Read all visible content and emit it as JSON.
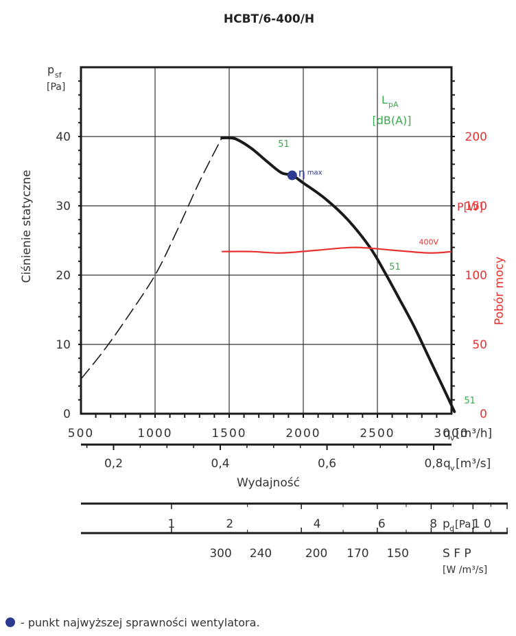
{
  "colors": {
    "curve": "#1a1a1a",
    "power": "#e8312f",
    "noise": "#3aaa4e",
    "eta": "#2b3990",
    "grid": "#333333"
  },
  "chart_data": {
    "type": "line",
    "title": "HCBT/6-400/H",
    "ylabel": "Ciśnienie statyczne",
    "ylabel2": "Pobór mocy",
    "xlabel": "Wydajność",
    "x_range": [
      500,
      3000
    ],
    "xlim": [
      500,
      3000
    ],
    "ylim": [
      0,
      50
    ],
    "ylim_right": [
      0,
      250
    ],
    "y_unit_sym": "p",
    "y_unit_sub": "sf",
    "y_unit": "[Pa]",
    "y_ticks": [
      0,
      10,
      20,
      30,
      40
    ],
    "right_unit": "P[W]",
    "right_ticks": [
      0,
      50,
      100,
      150,
      200
    ],
    "x_ticks": [
      500,
      1000,
      1500,
      2000,
      2500,
      3000
    ],
    "x_unit_sym": "q",
    "x_unit_sub": "v",
    "x_unit": "[m³/h]",
    "x2_ticks": [
      "0,2",
      "0,4",
      "0,6",
      "0,8"
    ],
    "x2_values": [
      0.2,
      0.4,
      0.6,
      0.8
    ],
    "x2_unit": "[m³/s]",
    "lpa_label": "L",
    "lpa_sub": "pA",
    "lpa_unit": "[dB(A)]",
    "series": [
      {
        "name": "static-pressure",
        "x": [
          1450,
          1500,
          1550,
          1650,
          1750,
          1850,
          1925,
          2000,
          2150,
          2300,
          2450,
          2550,
          2650,
          2750,
          2850,
          2950,
          3020
        ],
        "y": [
          39.8,
          39.8,
          39.6,
          38.3,
          36.5,
          34.8,
          34.4,
          33.3,
          31.0,
          28.0,
          24.0,
          20.4,
          16.5,
          12.5,
          8.0,
          3.5,
          0.3
        ]
      },
      {
        "name": "unstable-region",
        "style": "dashed",
        "x": [
          500,
          650,
          800,
          1000,
          1150,
          1300,
          1450
        ],
        "y": [
          5,
          9,
          13.5,
          20,
          26.5,
          33.5,
          39.8
        ]
      },
      {
        "name": "power-400V",
        "unit": "W",
        "x": [
          1450,
          1650,
          1850,
          2100,
          2350,
          2600,
          2850,
          3000
        ],
        "y": [
          117,
          117,
          116,
          118,
          120,
          118,
          116,
          117
        ]
      }
    ],
    "eta_max": {
      "x": 1925,
      "y": 34.4,
      "label": "η",
      "sub": "max"
    },
    "annotations": [
      {
        "text": "51",
        "x": 1830,
        "y": 38.5,
        "color": "noise"
      },
      {
        "text": "51",
        "x": 2580,
        "y": 20.8,
        "color": "noise"
      },
      {
        "text": "51",
        "x": 3085,
        "y": 1.5,
        "color": "noise"
      },
      {
        "text": "400V",
        "x": 2780,
        "y": 122,
        "color": "power"
      }
    ],
    "pd_scale": {
      "ticks": [
        "1",
        "2",
        "4",
        "6",
        "8",
        "1 0"
      ],
      "positions": [
        1.3,
        1.75,
        2.425,
        2.925,
        3.325,
        3.7
      ],
      "unit_sym": "p",
      "unit_sub": "d",
      "unit": "[Pa]"
    },
    "sfp_scale": {
      "ticks": [
        "300",
        "240",
        "200",
        "170",
        "150"
      ],
      "positions": [
        1.68,
        1.99,
        2.42,
        2.74,
        3.05
      ],
      "label": "S F P",
      "unit": "[W /m³/s]"
    }
  },
  "footer": {
    "legend_text": "- punkt najwyższej sprawności wentylatora."
  }
}
